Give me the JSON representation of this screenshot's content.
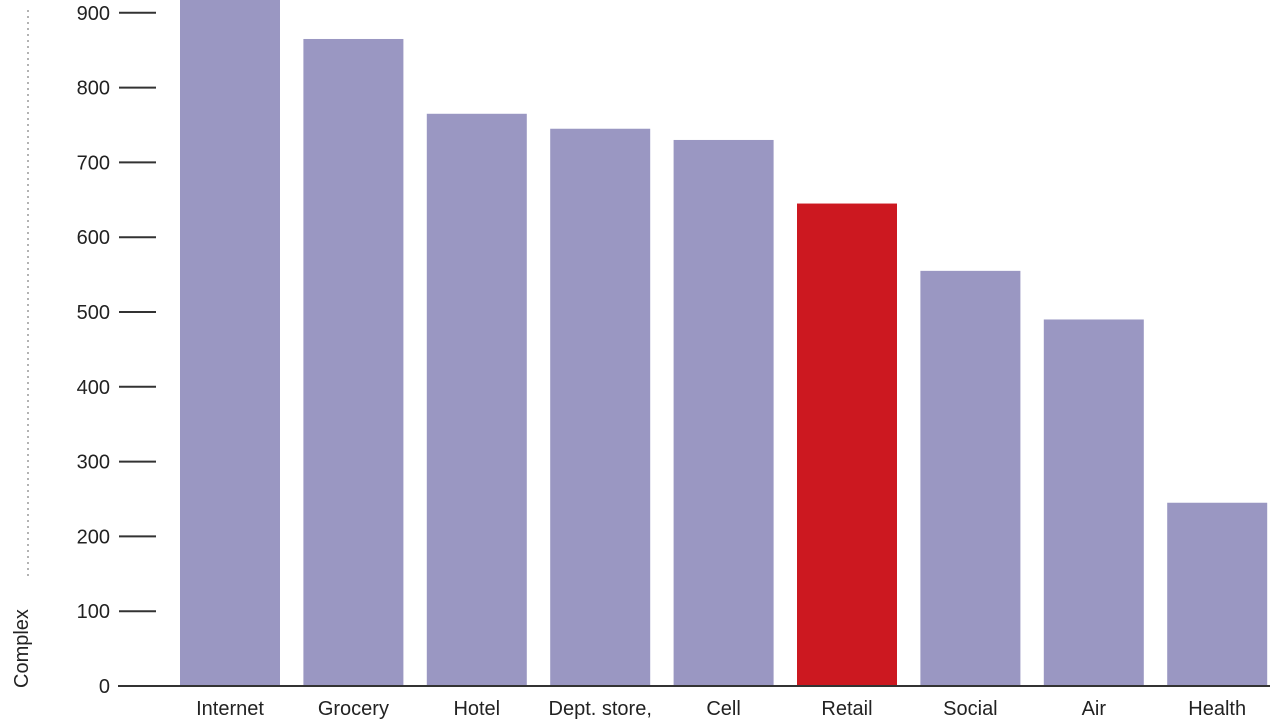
{
  "chart_data": {
    "type": "bar",
    "categories": [
      "Internet",
      "Grocery",
      "Hotel",
      "Dept. store,",
      "Cell",
      "Retail",
      "Social",
      "Air",
      "Health"
    ],
    "values": [
      920,
      865,
      765,
      745,
      730,
      645,
      555,
      490,
      245
    ],
    "highlight_index": 5,
    "ylabel": "Complex",
    "ylim": [
      0,
      920
    ],
    "yticks": [
      0,
      100,
      200,
      300,
      400,
      500,
      600,
      700,
      800,
      900
    ],
    "grid": false,
    "colors": {
      "bar": "#9a97c2",
      "highlight": "#cc1820",
      "axis": "#333333",
      "dotted_line": "#9a9a9a"
    }
  }
}
